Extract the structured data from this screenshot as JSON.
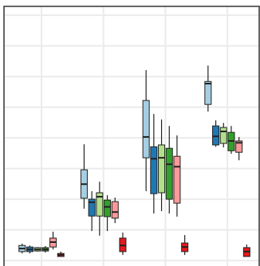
{
  "chart_data": {
    "type": "box",
    "categories": [
      null,
      null,
      null,
      null
    ],
    "ylim": [
      -0.18,
      8.29
    ],
    "yticks": [
      0,
      1,
      2,
      3,
      4,
      5,
      6,
      7,
      8
    ],
    "grid": true,
    "series": [
      {
        "color": "#a6cee3",
        "values": [
          {
            "min": 0.23,
            "q1": 0.29,
            "median": 0.39,
            "q3": 0.49,
            "max": 0.55
          },
          {
            "min": 1.69,
            "q1": 2.03,
            "median": 2.49,
            "q3": 2.96,
            "max": 3.79
          },
          {
            "min": 2.26,
            "q1": 3.35,
            "median": 4.03,
            "q3": 5.22,
            "max": 6.21
          },
          {
            "min": 4.86,
            "q1": 5.09,
            "median": 5.77,
            "q3": 5.84,
            "max": 6.36
          }
        ]
      },
      {
        "color": "#1f78b4",
        "values": [
          {
            "min": 0.23,
            "q1": 0.29,
            "median": 0.36,
            "q3": 0.44,
            "max": 0.49
          },
          {
            "min": 0.96,
            "q1": 1.45,
            "median": 1.9,
            "q3": 2.0,
            "max": 2.26
          },
          {
            "min": 1.53,
            "q1": 2.18,
            "median": 3.32,
            "q3": 3.71,
            "max": 4.78
          },
          {
            "min": 3.71,
            "q1": 3.77,
            "median": 4.05,
            "q3": 4.39,
            "max": 4.57
          }
        ]
      },
      {
        "color": "#b2df8a",
        "values": [
          {
            "min": 0.29,
            "q1": 0.31,
            "median": 0.36,
            "q3": 0.42,
            "max": 0.44
          },
          {
            "min": 0.81,
            "q1": 1.45,
            "median": 2.08,
            "q3": 2.21,
            "max": 2.57
          },
          {
            "min": 1.61,
            "q1": 2.21,
            "median": 3.35,
            "q3": 3.77,
            "max": 4.6
          },
          {
            "min": 3.69,
            "q1": 3.82,
            "median": 4.21,
            "q3": 4.34,
            "max": 4.49
          }
        ]
      },
      {
        "color": "#33a02c",
        "values": [
          {
            "min": 0.26,
            "q1": 0.31,
            "median": 0.36,
            "q3": 0.42,
            "max": 0.47
          },
          {
            "min": 0.96,
            "q1": 1.43,
            "median": 1.75,
            "q3": 1.97,
            "max": 2.13
          },
          {
            "min": 1.53,
            "q1": 2.0,
            "median": 3.14,
            "q3": 3.66,
            "max": 4.39
          },
          {
            "min": 3.48,
            "q1": 3.58,
            "median": 3.9,
            "q3": 4.18,
            "max": 4.39
          }
        ]
      },
      {
        "color": "#fb9a99",
        "values": [
          {
            "min": 0.36,
            "q1": 0.44,
            "median": 0.6,
            "q3": 0.73,
            "max": 0.94
          },
          {
            "min": 1.22,
            "q1": 1.38,
            "median": 1.58,
            "q3": 1.92,
            "max": 2.05
          },
          {
            "min": 1.43,
            "q1": 1.87,
            "median": 3.06,
            "q3": 3.4,
            "max": 4.08
          },
          {
            "min": 3.27,
            "q1": 3.53,
            "median": 3.84,
            "q3": 3.9,
            "max": 4.03
          }
        ]
      },
      {
        "color": "#e31a1c",
        "values": [
          {
            "min": 0.13,
            "q1": 0.13,
            "median": 0.18,
            "q3": 0.23,
            "max": 0.29
          },
          {
            "min": 0.18,
            "q1": 0.29,
            "median": 0.49,
            "q3": 0.73,
            "max": 0.91
          },
          {
            "min": 0.18,
            "q1": 0.29,
            "median": 0.44,
            "q3": 0.57,
            "max": 0.83
          },
          {
            "min": 0.13,
            "q1": 0.13,
            "median": 0.29,
            "q3": 0.42,
            "max": 0.52
          }
        ]
      }
    ]
  }
}
